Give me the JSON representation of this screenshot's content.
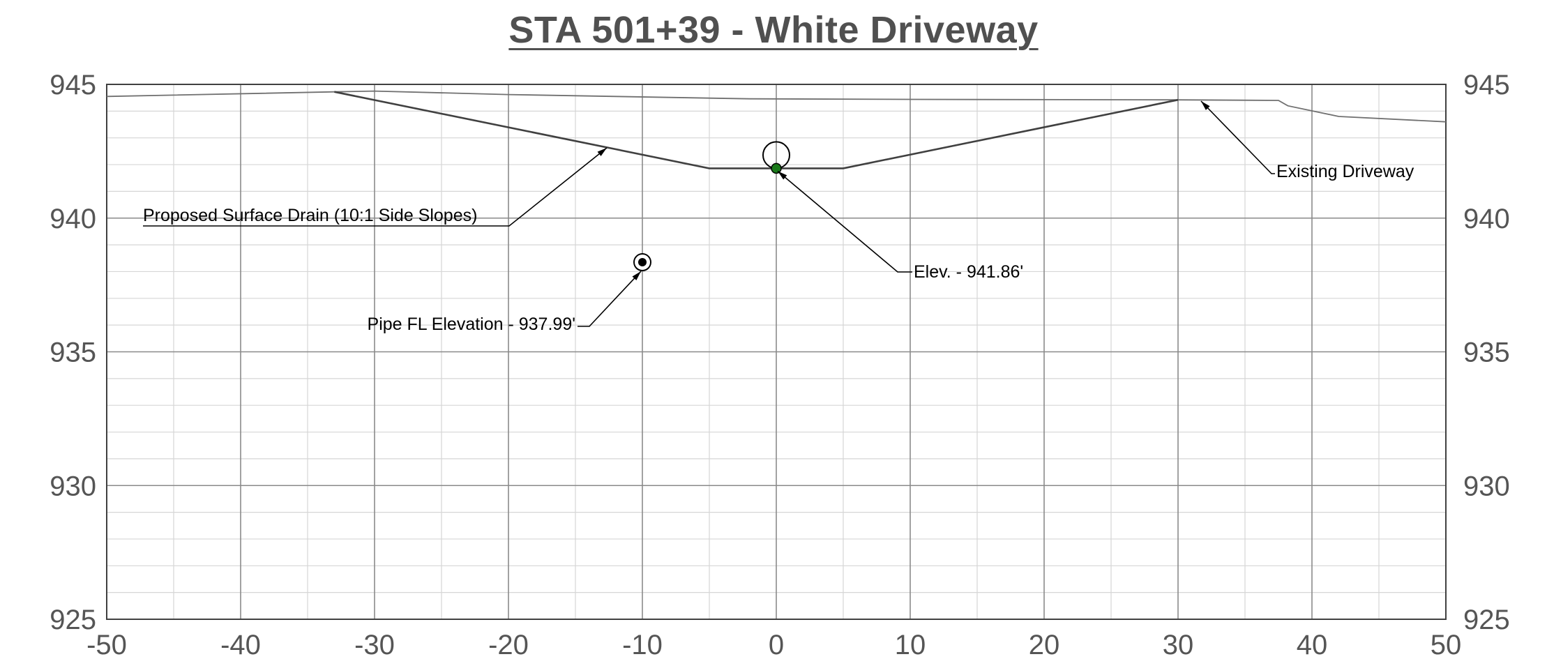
{
  "title": "STA 501+39  - White Driveway",
  "chart_data": {
    "type": "line",
    "title": "STA 501+39  - White Driveway",
    "xlim": [
      -50,
      50
    ],
    "ylim": [
      925,
      945
    ],
    "x_ticks": [
      "-50",
      "-40",
      "-30",
      "-20",
      "-10",
      "0",
      "10",
      "20",
      "30",
      "40",
      "50"
    ],
    "y_ticks_left": [
      "945",
      "940",
      "935",
      "930",
      "925"
    ],
    "y_ticks_right": [
      "945",
      "940",
      "935",
      "930",
      "925"
    ],
    "grid": true,
    "series": [
      {
        "role": "existing",
        "color": "#707070",
        "points": [
          [
            -50,
            944.55
          ],
          [
            -33,
            944.72
          ],
          [
            -30,
            944.75
          ],
          [
            -20,
            944.62
          ],
          [
            -2,
            944.46
          ],
          [
            10,
            944.44
          ],
          [
            30,
            944.42
          ],
          [
            37.5,
            944.4
          ],
          [
            38.2,
            944.2
          ],
          [
            42,
            943.8
          ],
          [
            50,
            943.6
          ]
        ]
      },
      {
        "role": "proposed",
        "color": "#404040",
        "points": [
          [
            -33,
            944.72
          ],
          [
            -5,
            941.86
          ],
          [
            5,
            941.86
          ],
          [
            30,
            944.42
          ]
        ]
      }
    ],
    "markers": [
      {
        "role": "ditch-point",
        "x": 0,
        "y": 941.86
      },
      {
        "role": "pipe-point",
        "x": -10,
        "y": 938.35
      }
    ],
    "annotations": [
      {
        "id": "drain",
        "text": "Proposed Surface Drain (10:1 Side Slopes)"
      },
      {
        "id": "existing",
        "text": "Existing Driveway"
      },
      {
        "id": "elev",
        "text": "Elev. - 941.86'"
      },
      {
        "id": "pipe",
        "text": "Pipe FL Elevation - 937.99'"
      }
    ]
  }
}
